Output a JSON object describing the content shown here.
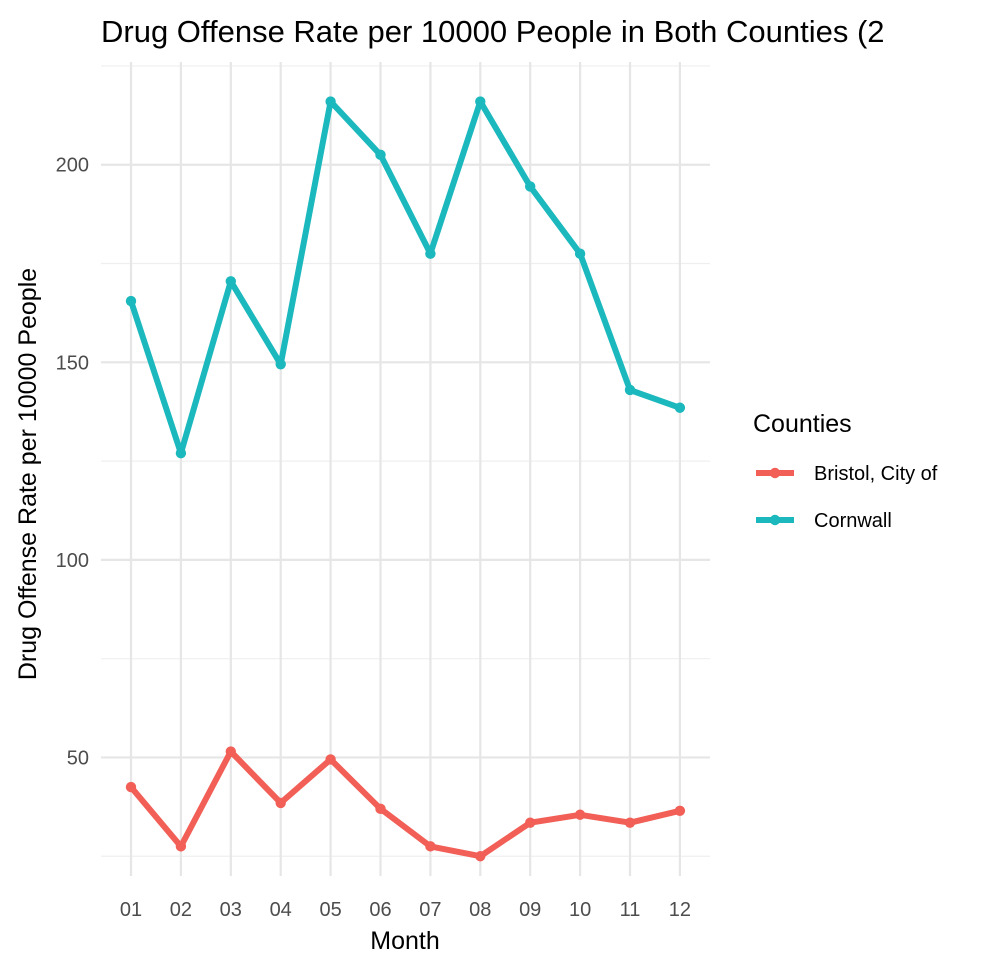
{
  "chart_data": {
    "type": "line",
    "title": "Drug Offense Rate per 10000 People in Both Counties (2",
    "xlabel": "Month",
    "ylabel": "Drug Offense Rate per 10000 People",
    "categories": [
      "01",
      "02",
      "03",
      "04",
      "05",
      "06",
      "07",
      "08",
      "09",
      "10",
      "11",
      "12"
    ],
    "ylim": [
      20,
      226
    ],
    "yticks": [
      50,
      100,
      150,
      200
    ],
    "grid": true,
    "legend": {
      "title": "Counties",
      "position": "right"
    },
    "series": [
      {
        "name": "Bristol, City of",
        "color": "#f25f57",
        "values": [
          42.5,
          27.5,
          51.5,
          38.5,
          49.5,
          37.0,
          27.5,
          25.0,
          33.5,
          35.5,
          33.5,
          36.5
        ]
      },
      {
        "name": "Cornwall",
        "color": "#1bb8bd",
        "values": [
          165.5,
          127.0,
          170.5,
          149.5,
          216.0,
          202.5,
          177.5,
          216.0,
          194.5,
          177.5,
          143.0,
          138.5
        ]
      }
    ]
  }
}
